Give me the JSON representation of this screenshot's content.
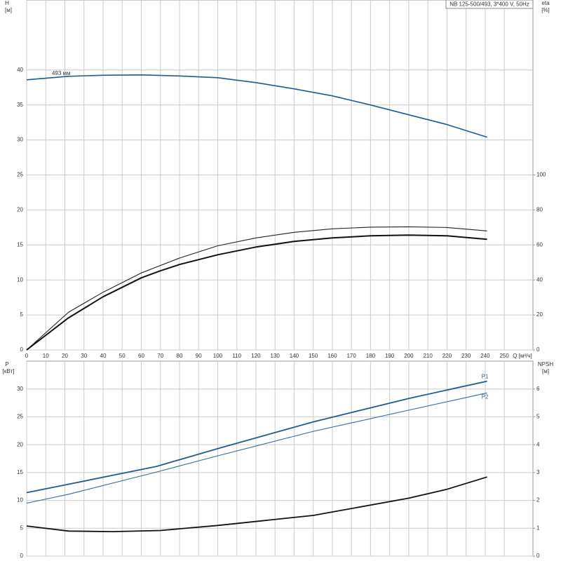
{
  "chart_data": [
    {
      "type": "line",
      "title": "NB 125-500/493, 3*400 V, 50Hz",
      "xlabel": "Q [м³/ч]",
      "ylabel": "H",
      "yunit": "[м]",
      "y2label": "eta",
      "y2unit": "[%]",
      "xlim": [
        0,
        265
      ],
      "xticks": [
        0,
        10,
        20,
        30,
        40,
        50,
        60,
        70,
        80,
        90,
        100,
        110,
        120,
        130,
        140,
        150,
        160,
        170,
        180,
        190,
        200,
        210,
        220,
        230,
        240,
        250
      ],
      "show_xtick_labels": true,
      "ylim": [
        0,
        50
      ],
      "yticks": [
        0,
        5,
        10,
        15,
        20,
        25,
        30,
        35,
        40
      ],
      "y2lim": [
        0,
        200
      ],
      "y2ticks": [
        0,
        20,
        40,
        60,
        80,
        100
      ],
      "grid": true,
      "series": [
        {
          "name": "493 мм",
          "color": "#1f5a94",
          "width": 1.6,
          "x": [
            0,
            22,
            40,
            60,
            80,
            100,
            120,
            140,
            160,
            180,
            200,
            220,
            241
          ],
          "values": [
            38.6,
            39.1,
            39.25,
            39.3,
            39.15,
            38.9,
            38.2,
            37.3,
            36.3,
            35.0,
            33.6,
            32.2,
            30.4
          ]
        },
        {
          "color": "#222222",
          "width": 1.1,
          "axis": "y2",
          "x": [
            0,
            22,
            40,
            60,
            80,
            100,
            120,
            140,
            160,
            180,
            200,
            220,
            241
          ],
          "values": [
            0,
            21.6,
            33,
            44,
            52.5,
            59.5,
            64,
            67.2,
            69.2,
            70.2,
            70.4,
            70,
            68
          ]
        },
        {
          "color": "#111111",
          "width": 2,
          "axis": "y2",
          "x": [
            0,
            22,
            40,
            60,
            70,
            80,
            100,
            120,
            140,
            160,
            180,
            200,
            220,
            241
          ],
          "values": [
            0,
            18.4,
            30.4,
            41.2,
            45.2,
            48.8,
            54.4,
            58.8,
            62,
            64,
            65.2,
            65.6,
            65.2,
            63.2
          ]
        }
      ]
    },
    {
      "type": "line",
      "ylabel": "P",
      "yunit": "[кВт]",
      "y2label": "NPSH",
      "y2unit": "[м]",
      "xlim": [
        0,
        265
      ],
      "xticks": [
        0,
        10,
        20,
        30,
        40,
        50,
        60,
        70,
        80,
        90,
        100,
        110,
        120,
        130,
        140,
        150,
        160,
        170,
        180,
        190,
        200,
        210,
        220,
        230,
        240,
        250
      ],
      "show_xtick_labels": false,
      "ylim": [
        0,
        35
      ],
      "yticks": [
        0,
        5,
        10,
        15,
        20,
        25,
        30
      ],
      "y2lim": [
        0,
        7
      ],
      "y2ticks": [
        0,
        1,
        2,
        3,
        4,
        5,
        6
      ],
      "grid": true,
      "series": [
        {
          "name": "P1",
          "color": "#1f5a94",
          "width": 1.8,
          "x": [
            0,
            22,
            68,
            100,
            150,
            200,
            241
          ],
          "values": [
            11.4,
            12.9,
            16.1,
            19.3,
            24.1,
            28.3,
            31.4
          ]
        },
        {
          "name": "P2",
          "color": "#2f6aa4",
          "width": 1.1,
          "x": [
            0,
            22,
            68,
            100,
            150,
            200,
            241
          ],
          "values": [
            9.5,
            11.1,
            15.1,
            18.0,
            22.4,
            26.2,
            29.3
          ]
        },
        {
          "color": "#111111",
          "width": 1.8,
          "axis": "y2",
          "x": [
            0,
            22,
            45,
            70,
            100,
            150,
            200,
            220,
            241
          ],
          "values": [
            1.08,
            0.9,
            0.88,
            0.92,
            1.1,
            1.46,
            2.08,
            2.4,
            2.84
          ]
        }
      ]
    }
  ]
}
